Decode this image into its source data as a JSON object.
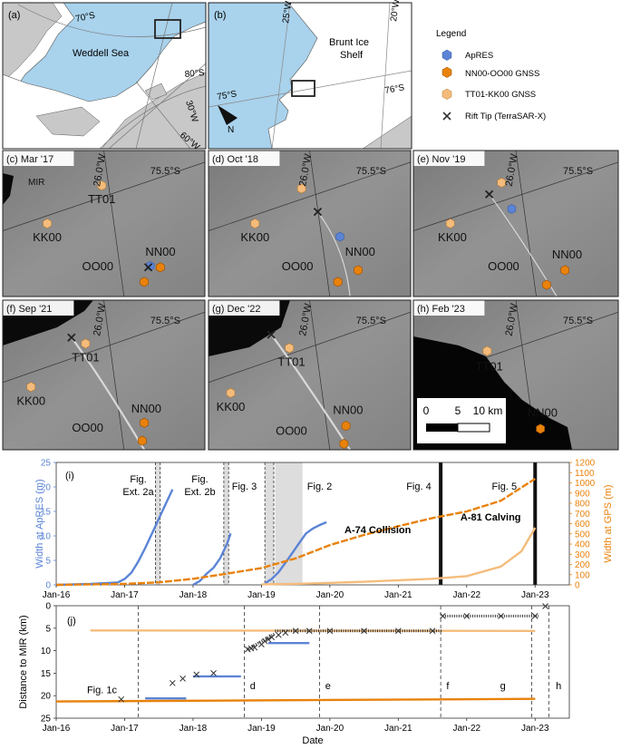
{
  "panels": {
    "a": {
      "label": "(a)",
      "sea": "Weddell Sea",
      "coords": [
        "70°S",
        "80°S",
        "30°W",
        "60°W"
      ]
    },
    "b": {
      "label": "(b)",
      "shelf": "Brunt Ice Shelf",
      "coords": [
        "25°W",
        "20°W",
        "75°S",
        "76°S"
      ],
      "north": "N"
    },
    "c": {
      "label": "(c) Mar '17",
      "coords": [
        "26.0°W",
        "75.5°S"
      ],
      "mir": "MIR",
      "stations": [
        "TT01",
        "KK00",
        "NN00",
        "OO00"
      ]
    },
    "d": {
      "label": "(d) Oct '18",
      "coords": [
        "26.0°W",
        "75.5°S"
      ],
      "stations": [
        "KK00",
        "NN00",
        "OO00"
      ]
    },
    "e": {
      "label": "(e) Nov '19",
      "coords": [
        "26.0°W",
        "75.5°S"
      ],
      "stations": [
        "KK00",
        "NN00",
        "OO00"
      ]
    },
    "f": {
      "label": "(f) Sep '21",
      "coords": [
        "26.0°W",
        "75.5°S"
      ],
      "stations": [
        "TT01",
        "KK00",
        "NN00",
        "OO00"
      ]
    },
    "g": {
      "label": "(g) Dec '22",
      "coords": [
        "26.0°W",
        "75.5°S"
      ],
      "stations": [
        "TT01",
        "KK00",
        "NN00",
        "OO00"
      ]
    },
    "h": {
      "label": "(h) Feb '23",
      "coords": [
        "26.0°W",
        "75.5°S"
      ],
      "stations": [
        "TT01",
        "NN00"
      ],
      "scalebar": [
        "0",
        "5",
        "10 km"
      ]
    }
  },
  "legend": {
    "title": "Legend",
    "items": [
      {
        "label": "ApRES",
        "color": "#5b84d6",
        "marker": "hexagon"
      },
      {
        "label": "NN00-OO00 GNSS",
        "color": "#e8820c",
        "marker": "hexagon"
      },
      {
        "label": "TT01-KK00 GNSS",
        "color": "#f4bc7c",
        "marker": "hexagon"
      },
      {
        "label": "Rift Tip (TerraSAR-X)",
        "color": "#333333",
        "marker": "x"
      }
    ]
  },
  "colors": {
    "ocean": "#a9d2ec",
    "ice": "#ffffff",
    "land": "#c8c8c8",
    "apres": "#5b84d6",
    "gnss_nn": "#e8820c",
    "gnss_tt": "#f4bc7c",
    "sar": "#8a8a8a"
  },
  "chart_data": [
    {
      "type": "line",
      "panel_label": "(i)",
      "ylabel_left": "Width at ApRES (m)",
      "ylabel_right": "Width at GPS (m)",
      "ylim_left": [
        0,
        25
      ],
      "yticks_left": [
        "0",
        "5",
        "10",
        "15",
        "20",
        "25"
      ],
      "ylim_right": [
        0,
        1200
      ],
      "yticks_right": [
        "0",
        "100",
        "200",
        "300",
        "400",
        "500",
        "600",
        "700",
        "800",
        "900",
        "1000",
        "1100",
        "1200"
      ],
      "xlim": [
        2016.0,
        2023.5
      ],
      "xticks": [
        "Jan-16",
        "Jan-17",
        "Jan-18",
        "Jan-19",
        "Jan-20",
        "Jan-21",
        "Jan-22",
        "Jan-23"
      ],
      "annotations": [
        "Fig. Ext. 2a",
        "Fig. Ext. 2b",
        "Fig. 3",
        "Fig. 2",
        "Fig. 4",
        "Fig. 5",
        "A-74 Collision",
        "A-81 Calving"
      ],
      "series": [
        {
          "axis": "left",
          "color": "#5b84d6",
          "x": [
            2016.0,
            2016.5,
            2016.9,
            2017.0,
            2017.1,
            2017.2,
            2017.3,
            2017.4,
            2017.5,
            2017.6,
            2017.7
          ],
          "y": [
            0,
            0.2,
            0.5,
            1.2,
            2.5,
            4.8,
            7.5,
            10.5,
            13.5,
            16.5,
            19.5
          ]
        },
        {
          "axis": "left",
          "color": "#5b84d6",
          "x": [
            2018.0,
            2018.1,
            2018.2,
            2018.3,
            2018.4,
            2018.5,
            2018.55
          ],
          "y": [
            0,
            0.8,
            2.3,
            3.5,
            5.5,
            8.5,
            10.5
          ]
        },
        {
          "axis": "left",
          "color": "#5b84d6",
          "x": [
            2019.05,
            2019.15,
            2019.25,
            2019.35,
            2019.45,
            2019.55,
            2019.65,
            2019.75,
            2019.85,
            2019.95
          ],
          "y": [
            0.3,
            1.2,
            2.6,
            4.5,
            6.5,
            8.5,
            10.5,
            11.5,
            12.2,
            12.8
          ]
        },
        {
          "axis": "right",
          "color": "#e8820c",
          "x": [
            2016.0,
            2017.0,
            2017.5,
            2018.0,
            2018.5,
            2019.0,
            2019.5,
            2020.0,
            2020.5,
            2021.0,
            2021.5,
            2022.0,
            2022.5,
            2023.0
          ],
          "y": [
            0,
            10,
            25,
            60,
            110,
            165,
            260,
            390,
            490,
            575,
            655,
            720,
            825,
            1040
          ]
        },
        {
          "axis": "right",
          "color": "#f4bc7c",
          "x": [
            2019.0,
            2019.5,
            2020.0,
            2020.5,
            2021.0,
            2021.5,
            2022.0,
            2022.5,
            2022.8,
            2023.0
          ],
          "y": [
            5,
            10,
            20,
            30,
            45,
            60,
            85,
            180,
            330,
            560
          ]
        }
      ]
    },
    {
      "type": "scatter",
      "panel_label": "(j)",
      "xlabel": "Date",
      "ylabel": "Distance to MIR (km)",
      "ylim": [
        25,
        0
      ],
      "yticks": [
        "0",
        "5",
        "10",
        "15",
        "20",
        "25"
      ],
      "xlim": [
        2016.0,
        2023.5
      ],
      "xticks": [
        "Jan-16",
        "Jan-17",
        "Jan-18",
        "Jan-19",
        "Jan-20",
        "Jan-21",
        "Jan-22",
        "Jan-23"
      ],
      "event_labels": [
        "Fig. 1c",
        "d",
        "e",
        "f",
        "g",
        "h"
      ],
      "series": [
        {
          "color": "#f4bc7c",
          "x": [
            2016.5,
            2023.0
          ],
          "y": [
            5.5,
            5.6
          ]
        },
        {
          "color": "#e8820c",
          "x": [
            2016.0,
            2023.0
          ],
          "y": [
            21.3,
            20.7
          ]
        },
        {
          "color": "#5b84d6",
          "x": [
            2017.3,
            2017.9
          ],
          "y": [
            20.6,
            20.6
          ]
        },
        {
          "color": "#5b84d6",
          "x": [
            2018.0,
            2018.7
          ],
          "y": [
            15.7,
            15.7
          ]
        },
        {
          "color": "#5b84d6",
          "x": [
            2019.1,
            2019.7
          ],
          "y": [
            8.3,
            8.3
          ]
        },
        {
          "color": "#333333",
          "marker": "x",
          "x": [
            2016.95,
            2017.7,
            2017.85,
            2018.05,
            2018.3,
            2018.8,
            2018.85,
            2018.9,
            2019.0,
            2019.05,
            2019.1,
            2019.15,
            2019.25,
            2019.35,
            2019.5,
            2019.7,
            2020.0,
            2020.5,
            2021.0,
            2021.5,
            2021.65,
            2022.0,
            2022.5,
            2023.0,
            2023.15
          ],
          "y": [
            20.8,
            17.2,
            16.2,
            15.3,
            15.0,
            9.7,
            9.5,
            9.3,
            8.6,
            7.9,
            7.5,
            7.0,
            6.5,
            6.0,
            5.6,
            5.6,
            5.6,
            5.6,
            5.6,
            5.6,
            2.3,
            2.3,
            2.3,
            2.3,
            0.1
          ]
        }
      ]
    }
  ]
}
